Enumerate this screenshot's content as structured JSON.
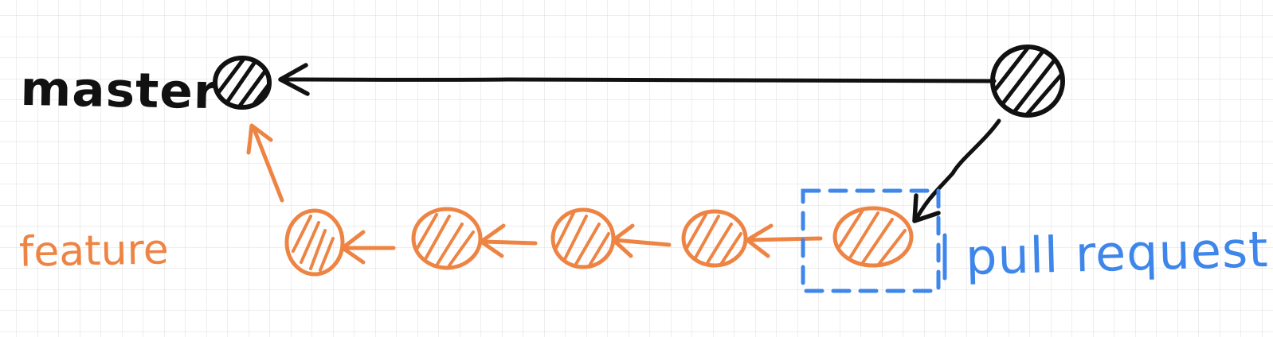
{
  "labels": {
    "master": "master",
    "feature": "feature",
    "pull_request": "pull request"
  },
  "colors": {
    "master": "#111111",
    "feature": "#ee8443",
    "pull_request": "#3f86ea",
    "grid": "#dcdcdc",
    "background": "#ffffff"
  },
  "branches": [
    {
      "name": "master",
      "commit_count": 2
    },
    {
      "name": "feature",
      "commit_count": 5
    }
  ]
}
